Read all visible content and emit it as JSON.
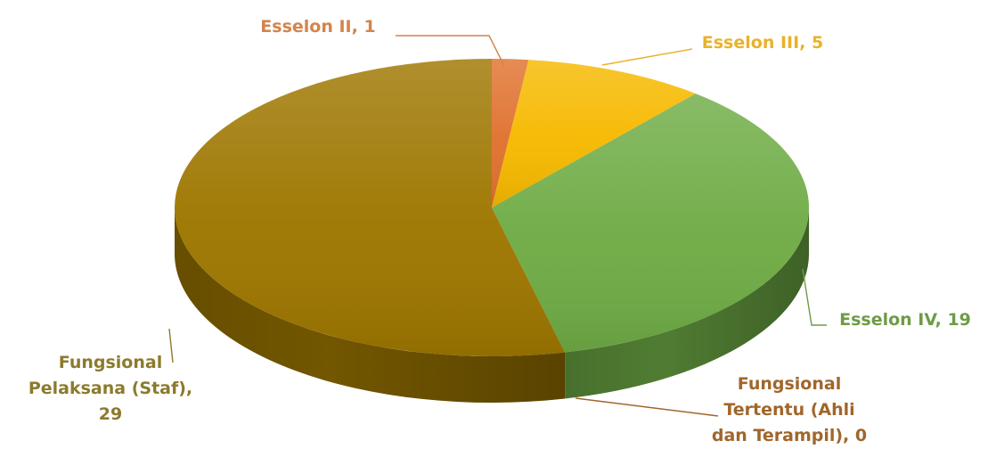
{
  "chart_data": {
    "type": "pie",
    "title": "",
    "categories": [
      "Esselon II",
      "Esselon III",
      "Esselon IV",
      "Fungsional Tertentu (Ahli dan Terampil)",
      "Fungsional Pelaksana (Staf)"
    ],
    "values": [
      1,
      5,
      19,
      0,
      29
    ],
    "slices": [
      {
        "label": "Esselon II",
        "value": 1,
        "color": "#E0722F",
        "label_text": "Esselon II, 1",
        "label_color": "#D4844B",
        "label_lines": [
          "Esselon II, 1"
        ]
      },
      {
        "label": "Esselon III",
        "value": 5,
        "color": "#F6B900",
        "label_text": "Esselon III, 5",
        "label_color": "#EAB22A",
        "label_lines": [
          "Esselon III, 5"
        ]
      },
      {
        "label": "Esselon IV",
        "value": 19,
        "color": "#6FAC45",
        "label_text": "Esselon IV, 19",
        "label_color": "#6E9B45",
        "label_lines": [
          "Esselon IV, 19"
        ]
      },
      {
        "label": "Fungsional Tertentu (Ahli dan Terampil)",
        "value": 0,
        "color": "#7A5410",
        "label_text": "Fungsional Tertentu (Ahli dan Terampil), 0",
        "label_color": "#A0662B",
        "label_lines": [
          "Fungsional",
          "Tertentu (Ahli",
          "dan Terampil), 0"
        ]
      },
      {
        "label": "Fungsional Pelaksana (Staf)",
        "value": 29,
        "color": "#9E7700",
        "label_text": "Fungsional Pelaksana (Staf), 29",
        "label_color": "#8C7A2D",
        "label_lines": [
          "Fungsional",
          "Pelaksana (Staf),",
          "29"
        ]
      }
    ],
    "style": "3d-pie",
    "legend": "none",
    "data_labels": "outside-with-leader-lines"
  }
}
